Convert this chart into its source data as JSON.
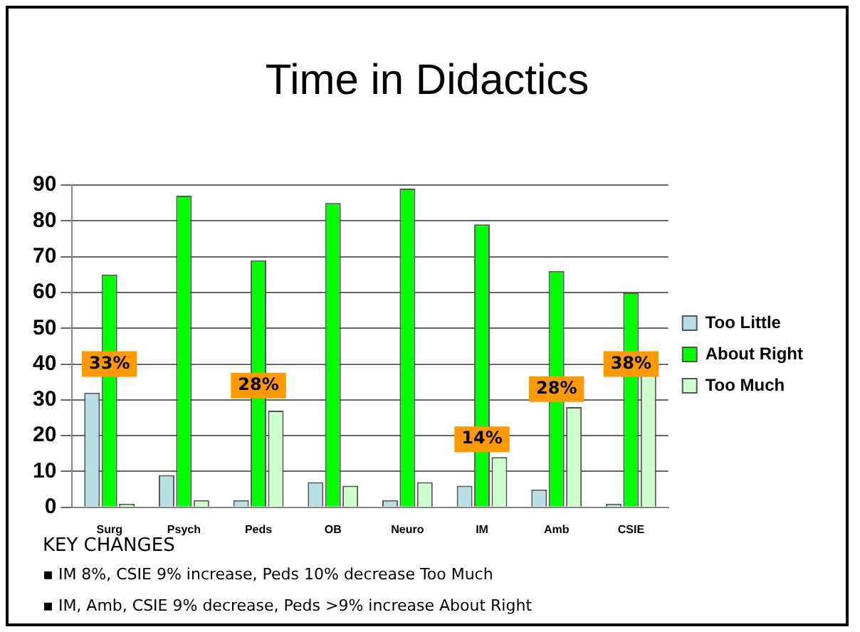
{
  "chart_data": {
    "type": "bar",
    "title": "Time in Didactics",
    "categories": [
      "Surg",
      "Psych",
      "Peds",
      "OB",
      "Neuro",
      "IM",
      "Amb",
      "CSIE"
    ],
    "series": [
      {
        "name": "Too Little",
        "color": "#b8e0e4",
        "values": [
          32,
          9,
          2,
          7,
          2,
          6,
          5,
          1
        ]
      },
      {
        "name": "About Right",
        "color": "#00ff00",
        "values": [
          65,
          87,
          69,
          85,
          89,
          79,
          66,
          60
        ]
      },
      {
        "name": "Too Much",
        "color": "#ccffcc",
        "values": [
          1,
          2,
          27,
          6,
          7,
          14,
          28,
          37
        ]
      }
    ],
    "ylim": [
      0,
      90
    ],
    "yticks": [
      0,
      10,
      20,
      30,
      40,
      50,
      60,
      70,
      80,
      90
    ],
    "grid": "y",
    "legend": "right",
    "annotations": [
      {
        "text": "33%",
        "x": "Surg",
        "y": 40
      },
      {
        "text": "28%",
        "x": "Peds",
        "y": 34
      },
      {
        "text": "14%",
        "x": "IM",
        "y": 19
      },
      {
        "text": "28%",
        "x": "Amb",
        "y": 33
      },
      {
        "text": "38%",
        "x": "CSIE",
        "y": 40
      },
      "KEY CHANGES",
      "▪ IM 8%, CSIE 9% increase, Peds 10% decrease Too Much",
      "▪ IM, Amb, CSIE 9% decrease, Peds >9% increase About Right"
    ]
  }
}
